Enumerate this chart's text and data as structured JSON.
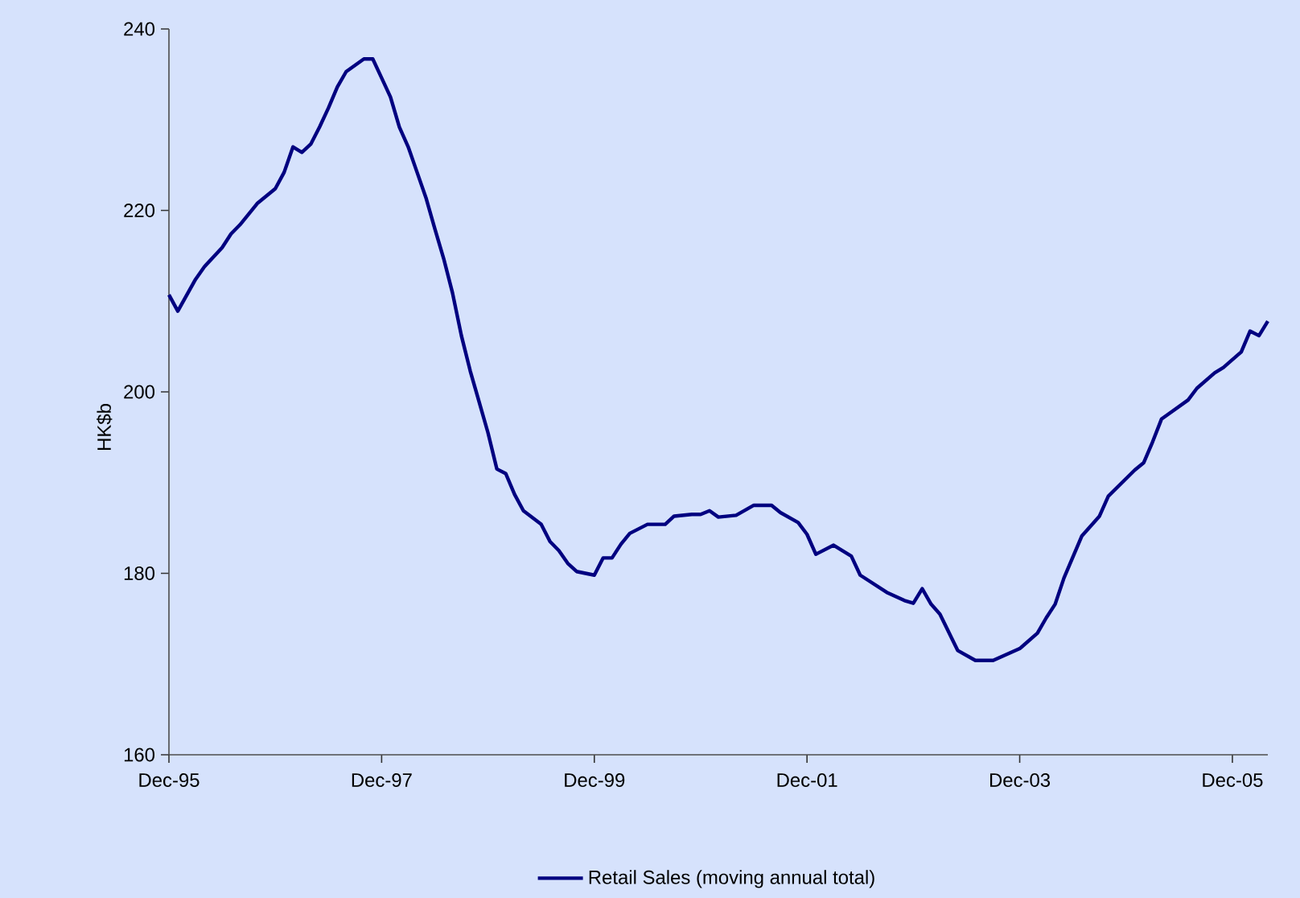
{
  "chart_data": {
    "type": "line",
    "ylabel": "HK$b",
    "x": [
      "1995-12",
      "1996-01",
      "1996-03",
      "1996-04",
      "1996-06",
      "1996-07",
      "1996-08",
      "1996-10",
      "1996-12",
      "1997-01",
      "1997-02",
      "1997-03",
      "1997-04",
      "1997-05",
      "1997-06",
      "1997-07",
      "1997-08",
      "1997-10",
      "1997-11",
      "1997-12",
      "1998-01",
      "1998-02",
      "1998-03",
      "1998-04",
      "1998-05",
      "1998-06",
      "1998-07",
      "1998-08",
      "1998-09",
      "1998-10",
      "1998-11",
      "1998-12",
      "1999-01",
      "1999-02",
      "1999-03",
      "1999-04",
      "1999-06",
      "1999-07",
      "1999-08",
      "1999-09",
      "1999-10",
      "1999-12",
      "2000-01",
      "2000-02",
      "2000-03",
      "2000-04",
      "2000-06",
      "2000-08",
      "2000-09",
      "2000-11",
      "2000-12",
      "2001-01",
      "2001-02",
      "2001-04",
      "2001-06",
      "2001-08",
      "2001-09",
      "2001-11",
      "2001-12",
      "2002-01",
      "2002-03",
      "2002-05",
      "2002-06",
      "2002-09",
      "2002-11",
      "2002-12",
      "2003-01",
      "2003-02",
      "2003-03",
      "2003-05",
      "2003-07",
      "2003-09",
      "2003-12",
      "2004-02",
      "2004-03",
      "2004-04",
      "2004-05",
      "2004-07",
      "2004-09",
      "2004-10",
      "2005-01",
      "2005-02",
      "2005-03",
      "2005-04",
      "2005-07",
      "2005-08",
      "2005-10",
      "2005-11",
      "2006-01",
      "2006-02",
      "2006-03",
      "2006-04"
    ],
    "series": [
      {
        "name": "Retail Sales (moving annual total)",
        "color": "#000080",
        "values": [
          210.7,
          208.9,
          212.4,
          213.8,
          215.9,
          217.4,
          218.4,
          220.8,
          222.4,
          224.2,
          227.0,
          226.4,
          227.3,
          229.2,
          231.3,
          233.6,
          235.3,
          236.7,
          236.7,
          234.6,
          232.5,
          229.2,
          227.0,
          224.2,
          221.4,
          218.0,
          214.7,
          210.9,
          206.2,
          202.3,
          198.9,
          195.5,
          191.5,
          191.0,
          188.7,
          186.9,
          185.4,
          183.5,
          182.5,
          181.1,
          180.2,
          179.8,
          181.7,
          181.7,
          183.2,
          184.4,
          185.4,
          185.4,
          186.3,
          186.5,
          186.5,
          186.9,
          186.2,
          186.4,
          187.5,
          187.5,
          186.7,
          185.6,
          184.3,
          182.1,
          183.1,
          181.9,
          179.8,
          177.9,
          177.0,
          176.7,
          178.3,
          176.6,
          175.5,
          171.5,
          170.4,
          170.4,
          171.7,
          173.4,
          175.1,
          176.6,
          179.5,
          184.1,
          186.3,
          188.5,
          191.4,
          192.2,
          194.5,
          197.0,
          199.1,
          200.4,
          202.1,
          202.7,
          204.4,
          206.7,
          206.2,
          207.8
        ]
      }
    ],
    "xlim": [
      "1995-12",
      "2006-04"
    ],
    "xticks": [
      {
        "value": "1995-12",
        "label": "Dec-95"
      },
      {
        "value": "1997-12",
        "label": "Dec-97"
      },
      {
        "value": "1999-12",
        "label": "Dec-99"
      },
      {
        "value": "2001-12",
        "label": "Dec-01"
      },
      {
        "value": "2003-12",
        "label": "Dec-03"
      },
      {
        "value": "2005-12",
        "label": "Dec-05"
      }
    ],
    "ylim": [
      160,
      240
    ],
    "yticks": [
      160,
      180,
      200,
      220,
      240
    ],
    "grid": false,
    "legend": "bottom",
    "line_style": "solid",
    "marker": "none"
  }
}
